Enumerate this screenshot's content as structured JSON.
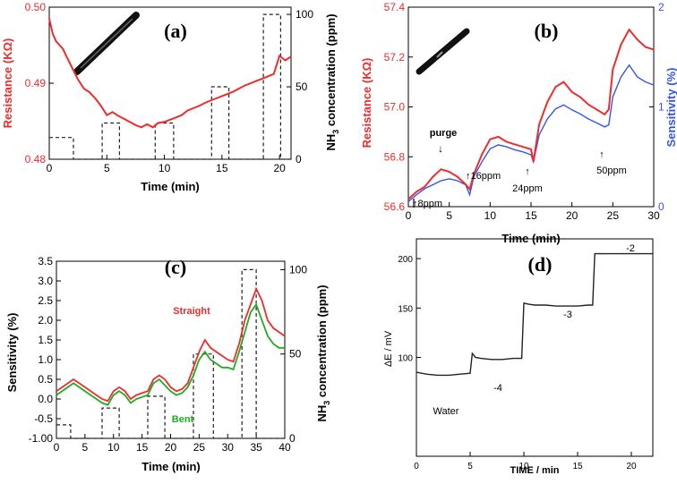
{
  "chart_data": [
    {
      "panel": "(a)",
      "type": "line",
      "xlabel": "Time (min)",
      "ylabel": "Resistance (KΩ)",
      "y2label_main": "NH",
      "y2label_sub": "3",
      "y2label_rest": " concentration (ppm)",
      "xlim": [
        0,
        21
      ],
      "ylim": [
        0.48,
        0.5
      ],
      "y2lim": [
        0,
        105
      ],
      "xticks": [
        "0",
        "5",
        "10",
        "15",
        "20"
      ],
      "yticks": [
        "0.48",
        "0.49",
        "0.50"
      ],
      "y2ticks": [
        "0",
        "50",
        "100"
      ],
      "colors": {
        "resistance": "#ee2c2c",
        "concentration": "#222222"
      },
      "series": [
        {
          "name": "Resistance",
          "axis": "left",
          "x": [
            0,
            0.3,
            0.6,
            0.9,
            1.2,
            1.5,
            2.0,
            2.5,
            3.0,
            3.5,
            4.0,
            4.5,
            5.0,
            5.5,
            6.0,
            6.5,
            7.0,
            7.5,
            8.0,
            8.5,
            9.0,
            9.5,
            10.0,
            10.5,
            11.0,
            11.5,
            12.0,
            12.5,
            13.0,
            13.5,
            14.0,
            14.5,
            15.0,
            15.5,
            16.0,
            16.5,
            17.0,
            17.5,
            18.0,
            18.5,
            19.0,
            19.5,
            20.0,
            20.5,
            21.0
          ],
          "y": [
            0.4985,
            0.4965,
            0.4955,
            0.495,
            0.4945,
            0.4935,
            0.492,
            0.4905,
            0.4893,
            0.4888,
            0.488,
            0.487,
            0.4858,
            0.4862,
            0.4857,
            0.4853,
            0.4849,
            0.4845,
            0.4842,
            0.4846,
            0.4842,
            0.4848,
            0.4849,
            0.4852,
            0.4855,
            0.4858,
            0.4864,
            0.4867,
            0.487,
            0.4874,
            0.4877,
            0.488,
            0.4883,
            0.4886,
            0.4889,
            0.4893,
            0.4897,
            0.49,
            0.4903,
            0.4906,
            0.4909,
            0.4912,
            0.4936,
            0.493,
            0.4935
          ]
        },
        {
          "name": "NH3 concentration",
          "axis": "right",
          "style": "dashed",
          "x": [
            0,
            2.1,
            2.1,
            4.6,
            4.6,
            6.1,
            6.1,
            9.2,
            9.2,
            10.8,
            10.8,
            14.1,
            14.1,
            15.6,
            15.6,
            18.6,
            18.6,
            20.1,
            20.1,
            21
          ],
          "y": [
            15,
            15,
            0,
            0,
            25,
            25,
            0,
            0,
            25,
            25,
            0,
            0,
            50,
            50,
            0,
            0,
            100,
            100,
            0,
            0
          ]
        }
      ],
      "annotation": "(a)"
    },
    {
      "panel": "(b)",
      "type": "line",
      "xlabel": "Time (min)",
      "ylabel": "Resistance (KΩ)",
      "y2label": "Sensitivity (%)",
      "xlim": [
        0,
        30
      ],
      "ylim": [
        56.6,
        57.4
      ],
      "y2lim": [
        0,
        2
      ],
      "xticks": [
        "0",
        "5",
        "10",
        "15",
        "20",
        "25",
        "30"
      ],
      "yticks": [
        "56.6",
        "56.8",
        "57.0",
        "57.2",
        "57.4"
      ],
      "y2ticks": [
        "0",
        "1",
        "2"
      ],
      "colors": {
        "resistance": "#ee2c2c",
        "sensitivity": "#3355ee"
      },
      "series": [
        {
          "name": "Resistance",
          "axis": "left",
          "x": [
            0,
            1,
            2,
            3,
            4,
            5,
            6,
            7,
            7.5,
            8,
            9,
            10,
            11,
            12,
            13,
            14,
            15,
            15.3,
            16,
            17,
            18,
            19,
            20,
            21,
            22,
            23,
            24,
            24.5,
            25,
            26,
            27,
            28,
            29,
            30
          ],
          "y": [
            56.63,
            56.66,
            56.68,
            56.72,
            56.75,
            56.74,
            56.72,
            56.69,
            56.67,
            56.73,
            56.81,
            56.87,
            56.88,
            56.86,
            56.85,
            56.84,
            56.83,
            56.78,
            56.93,
            57.02,
            57.08,
            57.1,
            57.06,
            57.04,
            57.01,
            56.99,
            56.97,
            56.99,
            57.15,
            57.25,
            57.31,
            57.27,
            57.24,
            57.23
          ]
        },
        {
          "name": "Sensitivity",
          "axis": "right",
          "x": [
            0,
            1,
            2,
            3,
            4,
            5,
            6,
            7,
            7.5,
            8,
            9,
            10,
            11,
            12,
            13,
            14,
            15,
            15.3,
            16,
            17,
            18,
            19,
            20,
            21,
            22,
            23,
            24,
            24.5,
            25,
            26,
            27,
            28,
            29,
            30
          ],
          "y": [
            0.05,
            0.12,
            0.18,
            0.22,
            0.26,
            0.28,
            0.26,
            0.22,
            0.12,
            0.3,
            0.45,
            0.58,
            0.62,
            0.6,
            0.57,
            0.55,
            0.52,
            0.45,
            0.72,
            0.88,
            0.98,
            1.02,
            0.97,
            0.93,
            0.88,
            0.84,
            0.8,
            0.82,
            1.1,
            1.3,
            1.42,
            1.3,
            1.25,
            1.22
          ]
        }
      ],
      "annotations": [
        "8ppm",
        "purge",
        "16ppm",
        "24ppm",
        "50ppm"
      ],
      "panel_label": "(b)"
    },
    {
      "panel": "(c)",
      "type": "line",
      "xlabel": "Time (min)",
      "ylabel": "Sensitivity (%)",
      "y2label_main": "NH",
      "y2label_sub": "3",
      "y2label_rest": " concentration (ppm)",
      "xlim": [
        0,
        40
      ],
      "ylim": [
        -1.0,
        3.5
      ],
      "y2lim": [
        0,
        105
      ],
      "xticks": [
        "0",
        "5",
        "10",
        "15",
        "20",
        "25",
        "30",
        "35",
        "40"
      ],
      "yticks": [
        "-1.00",
        "-0.5",
        "0.0",
        "0.5",
        "1.0",
        "1.5",
        "2.0",
        "2.5",
        "3.0",
        "3.5"
      ],
      "y2ticks": [
        "0",
        "50",
        "100"
      ],
      "colors": {
        "straight": "#ee2c2c",
        "bent": "#22aa22",
        "concentration": "#222222"
      },
      "series": [
        {
          "name": "Straight",
          "x": [
            0,
            2,
            3,
            4,
            5,
            6,
            7,
            8,
            9,
            10,
            11,
            12,
            13,
            14,
            15,
            16,
            17,
            18,
            19,
            20,
            21,
            22,
            23,
            24,
            25,
            26,
            27,
            28,
            29,
            30,
            31,
            32,
            33,
            34,
            35,
            36,
            37,
            38,
            39,
            40
          ],
          "y": [
            0.2,
            0.4,
            0.5,
            0.4,
            0.3,
            0.2,
            0.1,
            0.0,
            -0.05,
            0.2,
            0.3,
            0.2,
            0.0,
            0.1,
            0.15,
            0.2,
            0.5,
            0.6,
            0.5,
            0.3,
            0.2,
            0.25,
            0.4,
            0.8,
            1.2,
            1.5,
            1.3,
            1.2,
            1.1,
            1.0,
            0.95,
            1.4,
            2.0,
            2.4,
            2.8,
            2.5,
            2.0,
            1.8,
            1.7,
            1.6
          ]
        },
        {
          "name": "Bent",
          "x": [
            0,
            2,
            3,
            4,
            5,
            6,
            7,
            8,
            9,
            10,
            11,
            12,
            13,
            14,
            15,
            16,
            17,
            18,
            19,
            20,
            21,
            22,
            23,
            24,
            25,
            26,
            27,
            28,
            29,
            30,
            31,
            32,
            33,
            34,
            35,
            36,
            37,
            38,
            39,
            40
          ],
          "y": [
            0.1,
            0.3,
            0.4,
            0.3,
            0.2,
            0.1,
            0.0,
            -0.1,
            -0.15,
            0.1,
            0.2,
            0.1,
            -0.1,
            0.0,
            0.05,
            0.1,
            0.4,
            0.5,
            0.35,
            0.2,
            0.1,
            0.15,
            0.3,
            0.6,
            1.0,
            1.2,
            1.0,
            0.9,
            0.8,
            0.8,
            0.75,
            1.2,
            1.7,
            2.2,
            2.4,
            2.0,
            1.6,
            1.4,
            1.3,
            1.3
          ]
        },
        {
          "name": "NH3 concentration",
          "style": "dashed",
          "axis": "right",
          "x": [
            0,
            2.5,
            2.5,
            8,
            8,
            11,
            11,
            16,
            16,
            19,
            19,
            24,
            24,
            27.5,
            27.5,
            32.5,
            32.5,
            35,
            35,
            40
          ],
          "y": [
            8,
            8,
            0,
            0,
            18,
            18,
            0,
            0,
            25,
            25,
            0,
            0,
            50,
            50,
            0,
            0,
            100,
            100,
            0,
            0
          ]
        }
      ],
      "labels": {
        "straight": "Straight",
        "bent": "Bent"
      },
      "panel_label": "(c)"
    },
    {
      "panel": "(d)",
      "type": "line",
      "xlabel": "TIME / min",
      "ylabel": "ΔE / mV",
      "xlim": [
        0,
        22
      ],
      "ylim": [
        0,
        220
      ],
      "xticks": [
        "0",
        "5",
        "10",
        "15",
        "20"
      ],
      "yticks": [
        "100",
        "150",
        "200"
      ],
      "colors": {
        "line": "#222222"
      },
      "series": [
        {
          "name": "ΔE",
          "x": [
            0,
            1,
            2,
            3,
            4,
            5,
            5.2,
            5.5,
            6,
            7,
            8,
            9,
            9.8,
            10,
            10.4,
            11,
            12,
            13,
            14,
            15,
            16,
            16.4,
            16.6,
            17,
            18,
            19,
            20,
            21,
            22
          ],
          "y": [
            85,
            83,
            82,
            82,
            83,
            84,
            104,
            100,
            99,
            98,
            98,
            99,
            99,
            155,
            154,
            153,
            153,
            152,
            152,
            152,
            153,
            153,
            205,
            205,
            205,
            205,
            205,
            205,
            205
          ]
        }
      ],
      "annotations": [
        "Water",
        "-4",
        "-3",
        "-2"
      ],
      "panel_label": "(d)"
    }
  ]
}
